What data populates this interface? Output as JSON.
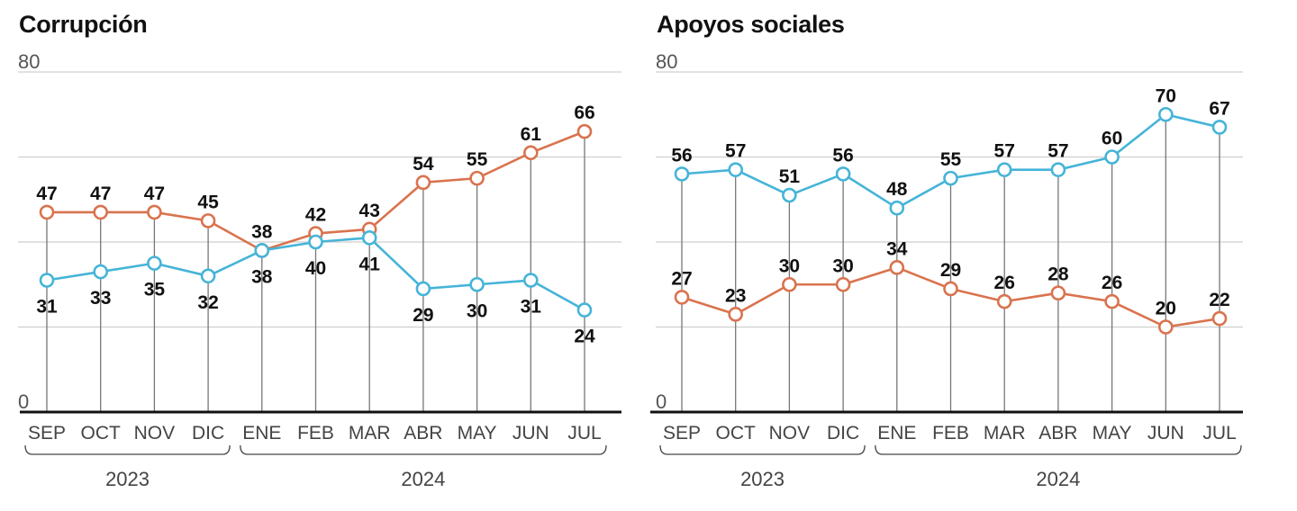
{
  "chart_data": [
    {
      "type": "line",
      "title": "Corrupción",
      "categories": [
        "SEP",
        "OCT",
        "NOV",
        "DIC",
        "ENE",
        "FEB",
        "MAR",
        "ABR",
        "MAY",
        "JUN",
        "JUL"
      ],
      "year_groups": [
        {
          "label": "2023",
          "from": 0,
          "to": 3
        },
        {
          "label": "2024",
          "from": 4,
          "to": 10
        }
      ],
      "ylim": [
        0,
        80
      ],
      "yticks": [
        0,
        80
      ],
      "grid": true,
      "series": [
        {
          "color": "#d9734e",
          "values": [
            47,
            47,
            47,
            45,
            38,
            42,
            43,
            54,
            55,
            61,
            66
          ]
        },
        {
          "color": "#45b4d8",
          "values": [
            31,
            33,
            35,
            32,
            38,
            40,
            41,
            29,
            30,
            31,
            24
          ]
        }
      ]
    },
    {
      "type": "line",
      "title": "Apoyos sociales",
      "categories": [
        "SEP",
        "OCT",
        "NOV",
        "DIC",
        "ENE",
        "FEB",
        "MAR",
        "ABR",
        "MAY",
        "JUN",
        "JUL"
      ],
      "year_groups": [
        {
          "label": "2023",
          "from": 0,
          "to": 3
        },
        {
          "label": "2024",
          "from": 4,
          "to": 10
        }
      ],
      "ylim": [
        0,
        80
      ],
      "yticks": [
        0,
        80
      ],
      "grid": true,
      "series": [
        {
          "color": "#45b4d8",
          "values": [
            56,
            57,
            51,
            56,
            48,
            55,
            57,
            57,
            60,
            70,
            67
          ]
        },
        {
          "color": "#d9734e",
          "values": [
            27,
            23,
            30,
            30,
            34,
            29,
            26,
            28,
            26,
            20,
            22
          ]
        }
      ]
    }
  ]
}
